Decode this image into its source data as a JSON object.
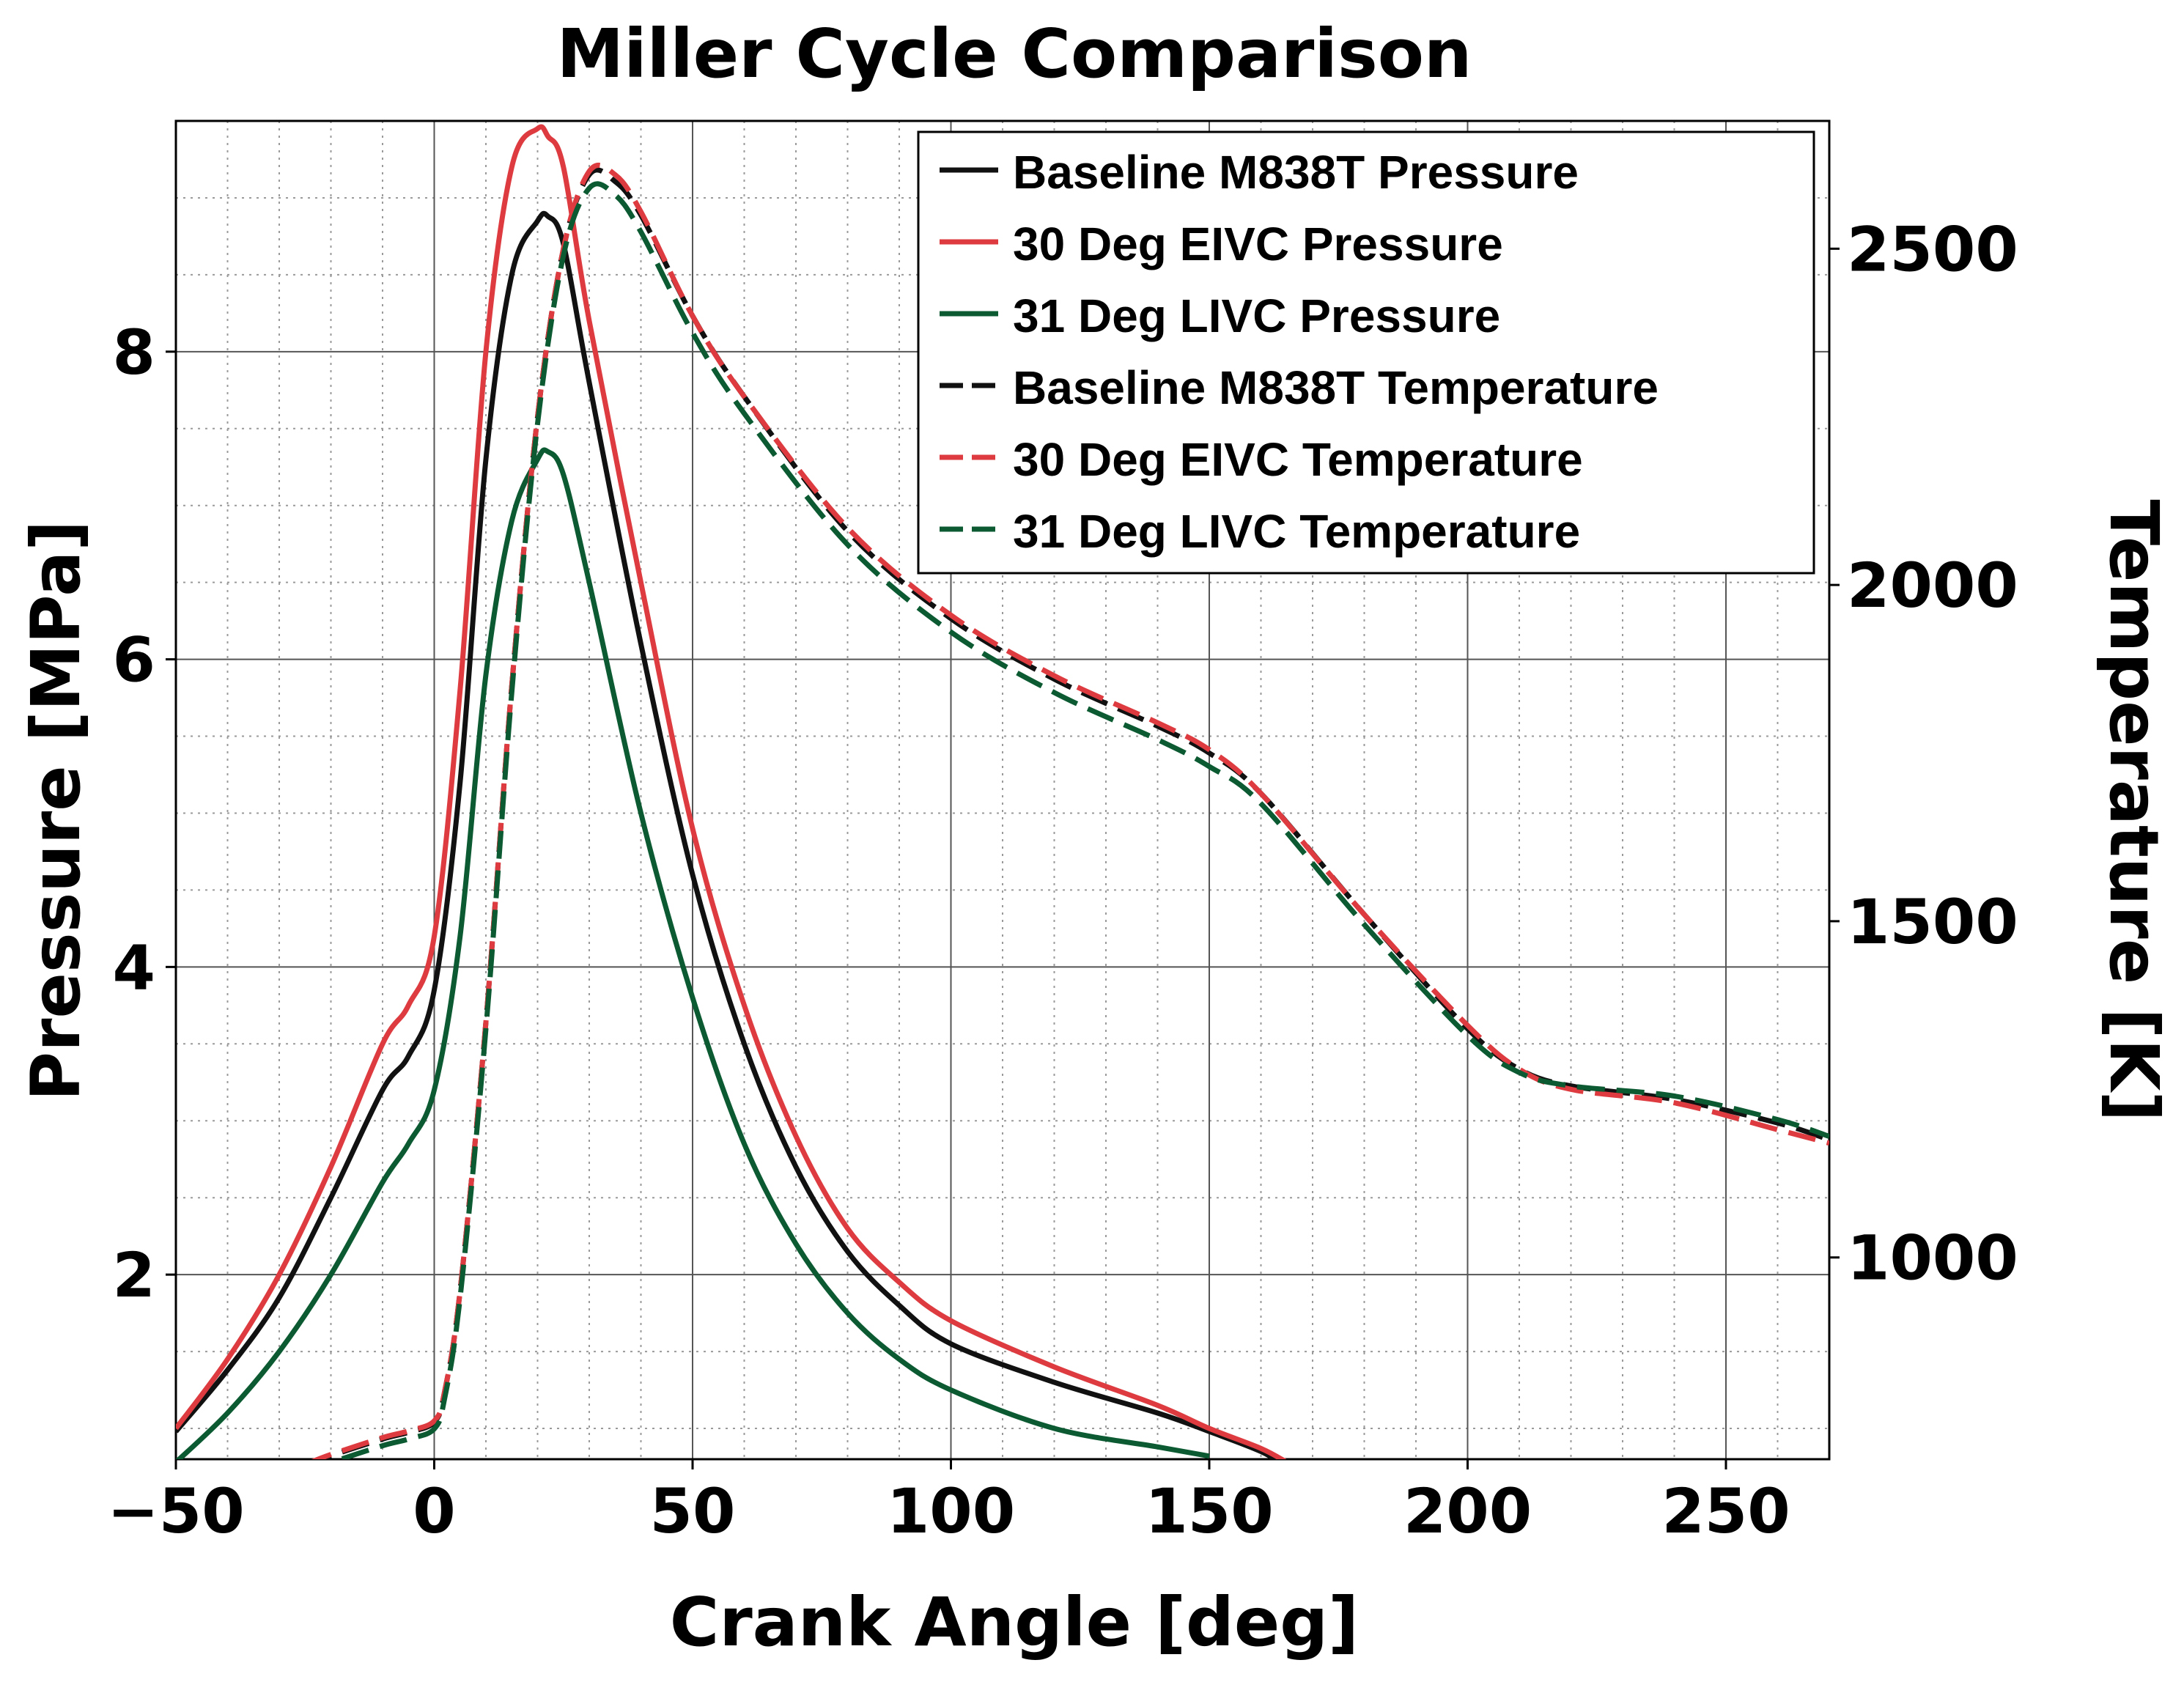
{
  "chart_data": {
    "type": "line",
    "title": "Miller Cycle Comparison",
    "xlabel": "Crank Angle [deg]",
    "ylabel": "Pressure [MPa]",
    "y2label": "Temperature [K]",
    "xlim": [
      -50,
      270
    ],
    "ylim": [
      0.8,
      9.5
    ],
    "y2lim": [
      700,
      2690
    ],
    "xticks": [
      -50,
      0,
      50,
      100,
      150,
      200,
      250
    ],
    "xtick_labels": [
      "−50",
      "0",
      "50",
      "100",
      "150",
      "200",
      "250"
    ],
    "yticks": [
      2,
      4,
      6,
      8
    ],
    "ytick_labels": [
      "2",
      "4",
      "6",
      "8"
    ],
    "y2ticks": [
      1000,
      1500,
      2000,
      2500
    ],
    "y2tick_labels": [
      "1000",
      "1500",
      "2000",
      "2500"
    ],
    "grid": true,
    "legend_position": "top-right",
    "colors": {
      "black": "#111111",
      "red": "#dd3b3f",
      "green": "#0b5a32"
    },
    "series": [
      {
        "name": "Baseline M838T Pressure",
        "axis": "left",
        "color": "black",
        "dashed": false,
        "x": [
          -50,
          -40,
          -30,
          -20,
          -10,
          -5,
          0,
          5,
          10,
          15,
          20,
          22,
          25,
          30,
          40,
          50,
          60,
          70,
          80,
          90,
          100,
          120,
          140,
          150,
          160,
          165
        ],
        "y": [
          0.98,
          1.38,
          1.85,
          2.5,
          3.2,
          3.42,
          3.85,
          5.2,
          7.3,
          8.5,
          8.85,
          8.88,
          8.7,
          7.8,
          6.1,
          4.6,
          3.5,
          2.7,
          2.15,
          1.8,
          1.55,
          1.3,
          1.1,
          0.98,
          0.85,
          0.75
        ]
      },
      {
        "name": "30 Deg EIVC Pressure",
        "axis": "left",
        "color": "red",
        "dashed": false,
        "x": [
          -50,
          -40,
          -30,
          -20,
          -10,
          -5,
          0,
          5,
          10,
          15,
          20,
          22,
          25,
          30,
          40,
          50,
          60,
          70,
          80,
          90,
          100,
          120,
          140,
          150,
          160,
          165
        ],
        "y": [
          1.0,
          1.45,
          2.0,
          2.7,
          3.5,
          3.75,
          4.2,
          5.8,
          8.0,
          9.2,
          9.45,
          9.4,
          9.2,
          8.2,
          6.5,
          4.9,
          3.75,
          2.9,
          2.3,
          1.95,
          1.7,
          1.4,
          1.15,
          1.0,
          0.87,
          0.78
        ]
      },
      {
        "name": "31 Deg LIVC Pressure",
        "axis": "left",
        "color": "green",
        "dashed": false,
        "x": [
          -50,
          -40,
          -30,
          -20,
          -10,
          -5,
          0,
          5,
          10,
          15,
          20,
          22,
          25,
          30,
          40,
          50,
          60,
          70,
          80,
          90,
          100,
          120,
          140,
          150
        ],
        "y": [
          0.78,
          1.1,
          1.5,
          2.0,
          2.6,
          2.85,
          3.2,
          4.2,
          5.9,
          6.9,
          7.3,
          7.35,
          7.2,
          6.5,
          5.0,
          3.8,
          2.85,
          2.2,
          1.75,
          1.45,
          1.25,
          1.0,
          0.88,
          0.82
        ]
      },
      {
        "name": "Baseline M838T Temperature",
        "axis": "right",
        "color": "black",
        "dashed": true,
        "x": [
          -25,
          -20,
          -10,
          -5,
          0,
          2,
          5,
          10,
          15,
          20,
          25,
          30,
          35,
          40,
          50,
          60,
          80,
          100,
          120,
          140,
          150,
          160,
          180,
          200,
          210,
          220,
          240,
          260,
          270
        ],
        "y": [
          690,
          705,
          730,
          740,
          755,
          800,
          950,
          1350,
          1850,
          2250,
          2500,
          2610,
          2600,
          2550,
          2400,
          2280,
          2080,
          1950,
          1860,
          1790,
          1750,
          1690,
          1510,
          1340,
          1280,
          1255,
          1235,
          1200,
          1175
        ]
      },
      {
        "name": "30 Deg EIVC Temperature",
        "axis": "right",
        "color": "red",
        "dashed": true,
        "x": [
          -25,
          -20,
          -10,
          -5,
          0,
          2,
          5,
          10,
          15,
          20,
          25,
          30,
          35,
          40,
          50,
          60,
          80,
          100,
          120,
          140,
          150,
          160,
          180,
          200,
          210,
          220,
          240,
          260,
          270
        ],
        "y": [
          692,
          707,
          732,
          742,
          757,
          800,
          950,
          1350,
          1850,
          2250,
          2500,
          2615,
          2610,
          2555,
          2400,
          2280,
          2085,
          1955,
          1865,
          1795,
          1755,
          1690,
          1510,
          1345,
          1280,
          1250,
          1230,
          1190,
          1170
        ]
      },
      {
        "name": "31 Deg LIVC Temperature",
        "axis": "right",
        "color": "green",
        "dashed": true,
        "x": [
          -25,
          -20,
          -10,
          -5,
          0,
          2,
          5,
          10,
          15,
          20,
          25,
          30,
          35,
          40,
          50,
          60,
          80,
          100,
          120,
          140,
          150,
          160,
          180,
          200,
          210,
          220,
          240,
          260,
          270
        ],
        "y": [
          680,
          695,
          720,
          730,
          745,
          790,
          940,
          1340,
          1840,
          2240,
          2490,
          2590,
          2580,
          2525,
          2375,
          2255,
          2060,
          1930,
          1840,
          1770,
          1730,
          1675,
          1495,
          1330,
          1275,
          1255,
          1240,
          1205,
          1180
        ]
      }
    ]
  }
}
